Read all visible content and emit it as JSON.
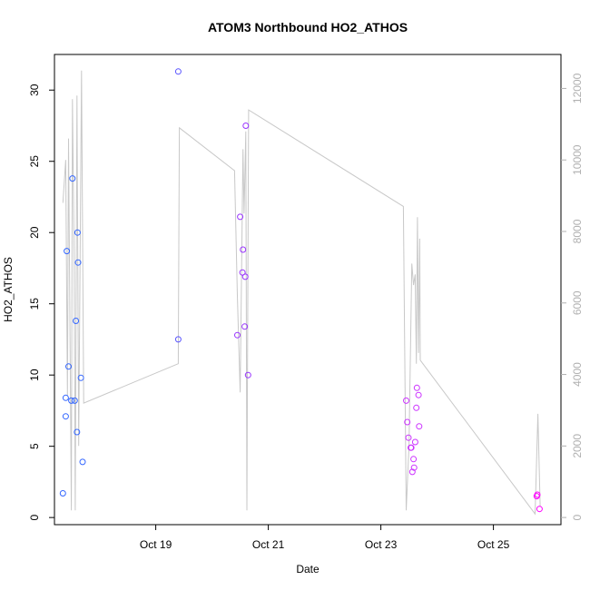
{
  "chart_data": {
    "type": "scatter",
    "title": "ATOM3 Northbound HO2_ATHOS",
    "xlabel": "Date",
    "ylabel": "HO2_ATHOS",
    "x_ticks": [
      "Oct 19",
      "Oct 21",
      "Oct 23",
      "Oct 25"
    ],
    "x_tick_values": [
      19,
      21,
      23,
      25
    ],
    "y_ticks": [
      "0",
      "5",
      "10",
      "15",
      "20",
      "25",
      "30"
    ],
    "y_tick_values": [
      0,
      5,
      10,
      15,
      20,
      25,
      30
    ],
    "y2_ticks": [
      "0",
      "2000",
      "4000",
      "6000",
      "8000",
      "10000",
      "12000"
    ],
    "y2_tick_values": [
      0,
      2000,
      4000,
      6000,
      8000,
      10000,
      12000
    ],
    "x_range": [
      17.2,
      26.2
    ],
    "y_range": [
      -0.5,
      32.5
    ],
    "y2_range": [
      -200,
      12950
    ],
    "x_axis_note": "x values are October day-of-month (fractional)",
    "points": [
      {
        "x": 17.35,
        "y": 1.7,
        "color": "#3366ff"
      },
      {
        "x": 17.4,
        "y": 7.1,
        "color": "#3366ff"
      },
      {
        "x": 17.4,
        "y": 8.4,
        "color": "#3366ff"
      },
      {
        "x": 17.42,
        "y": 18.7,
        "color": "#3366ff"
      },
      {
        "x": 17.45,
        "y": 10.6,
        "color": "#3366ff"
      },
      {
        "x": 17.5,
        "y": 8.2,
        "color": "#3366ff"
      },
      {
        "x": 17.52,
        "y": 23.8,
        "color": "#3366ff"
      },
      {
        "x": 17.56,
        "y": 8.2,
        "color": "#3366ff"
      },
      {
        "x": 17.58,
        "y": 13.8,
        "color": "#3366ff"
      },
      {
        "x": 17.6,
        "y": 6.0,
        "color": "#3366ff"
      },
      {
        "x": 17.61,
        "y": 20.0,
        "color": "#3366ff"
      },
      {
        "x": 17.62,
        "y": 17.9,
        "color": "#3366ff"
      },
      {
        "x": 17.67,
        "y": 9.8,
        "color": "#3366ff"
      },
      {
        "x": 17.7,
        "y": 3.9,
        "color": "#3366ff"
      },
      {
        "x": 19.4,
        "y": 31.3,
        "color": "#5a55ff"
      },
      {
        "x": 19.4,
        "y": 12.5,
        "color": "#5a55ff"
      },
      {
        "x": 20.45,
        "y": 12.8,
        "color": "#9933ff"
      },
      {
        "x": 20.5,
        "y": 21.1,
        "color": "#9933ff"
      },
      {
        "x": 20.54,
        "y": 17.2,
        "color": "#9933ff"
      },
      {
        "x": 20.55,
        "y": 18.8,
        "color": "#9933ff"
      },
      {
        "x": 20.58,
        "y": 13.4,
        "color": "#9933ff"
      },
      {
        "x": 20.59,
        "y": 16.9,
        "color": "#9933ff"
      },
      {
        "x": 20.6,
        "y": 27.5,
        "color": "#9933ff"
      },
      {
        "x": 20.64,
        "y": 10.0,
        "color": "#9933ff"
      },
      {
        "x": 23.45,
        "y": 8.2,
        "color": "#cc33ff"
      },
      {
        "x": 23.47,
        "y": 6.7,
        "color": "#cc33ff"
      },
      {
        "x": 23.49,
        "y": 5.6,
        "color": "#cc33ff"
      },
      {
        "x": 23.53,
        "y": 4.9,
        "color": "#cc33ff"
      },
      {
        "x": 23.54,
        "y": 4.9,
        "color": "#cc33ff"
      },
      {
        "x": 23.56,
        "y": 3.2,
        "color": "#cc33ff"
      },
      {
        "x": 23.58,
        "y": 4.1,
        "color": "#cc33ff"
      },
      {
        "x": 23.59,
        "y": 3.5,
        "color": "#cc33ff"
      },
      {
        "x": 23.61,
        "y": 5.3,
        "color": "#cc33ff"
      },
      {
        "x": 23.63,
        "y": 7.7,
        "color": "#cc33ff"
      },
      {
        "x": 23.64,
        "y": 9.1,
        "color": "#cc33ff"
      },
      {
        "x": 23.67,
        "y": 8.6,
        "color": "#cc33ff"
      },
      {
        "x": 23.68,
        "y": 6.4,
        "color": "#cc33ff"
      },
      {
        "x": 25.77,
        "y": 1.5,
        "color": "#ff00ff"
      },
      {
        "x": 25.78,
        "y": 1.6,
        "color": "#ff00ff"
      },
      {
        "x": 25.82,
        "y": 0.6,
        "color": "#ff00ff"
      }
    ],
    "line_series": {
      "color": "#c8c8c8",
      "axis": "right",
      "points": [
        [
          17.35,
          8800
        ],
        [
          17.4,
          10000
        ],
        [
          17.43,
          3400
        ],
        [
          17.45,
          10600
        ],
        [
          17.5,
          200
        ],
        [
          17.52,
          11700
        ],
        [
          17.55,
          7200
        ],
        [
          17.57,
          200
        ],
        [
          17.6,
          11800
        ],
        [
          17.63,
          2000
        ],
        [
          17.68,
          12500
        ],
        [
          17.72,
          3200
        ],
        [
          19.4,
          4300
        ],
        [
          19.42,
          10900
        ],
        [
          20.4,
          9700
        ],
        [
          20.45,
          6200
        ],
        [
          20.5,
          3500
        ],
        [
          20.55,
          10300
        ],
        [
          20.57,
          8500
        ],
        [
          20.6,
          10800
        ],
        [
          20.62,
          200
        ],
        [
          20.65,
          11400
        ],
        [
          23.4,
          8700
        ],
        [
          23.45,
          200
        ],
        [
          23.5,
          2000
        ],
        [
          23.55,
          7100
        ],
        [
          23.58,
          6500
        ],
        [
          23.61,
          6800
        ],
        [
          23.63,
          4300
        ],
        [
          23.65,
          8400
        ],
        [
          23.67,
          4600
        ],
        [
          23.69,
          7800
        ],
        [
          23.7,
          4400
        ],
        [
          25.74,
          100
        ],
        [
          25.79,
          2900
        ],
        [
          25.83,
          300
        ]
      ]
    },
    "grid": false,
    "legend": "none"
  }
}
